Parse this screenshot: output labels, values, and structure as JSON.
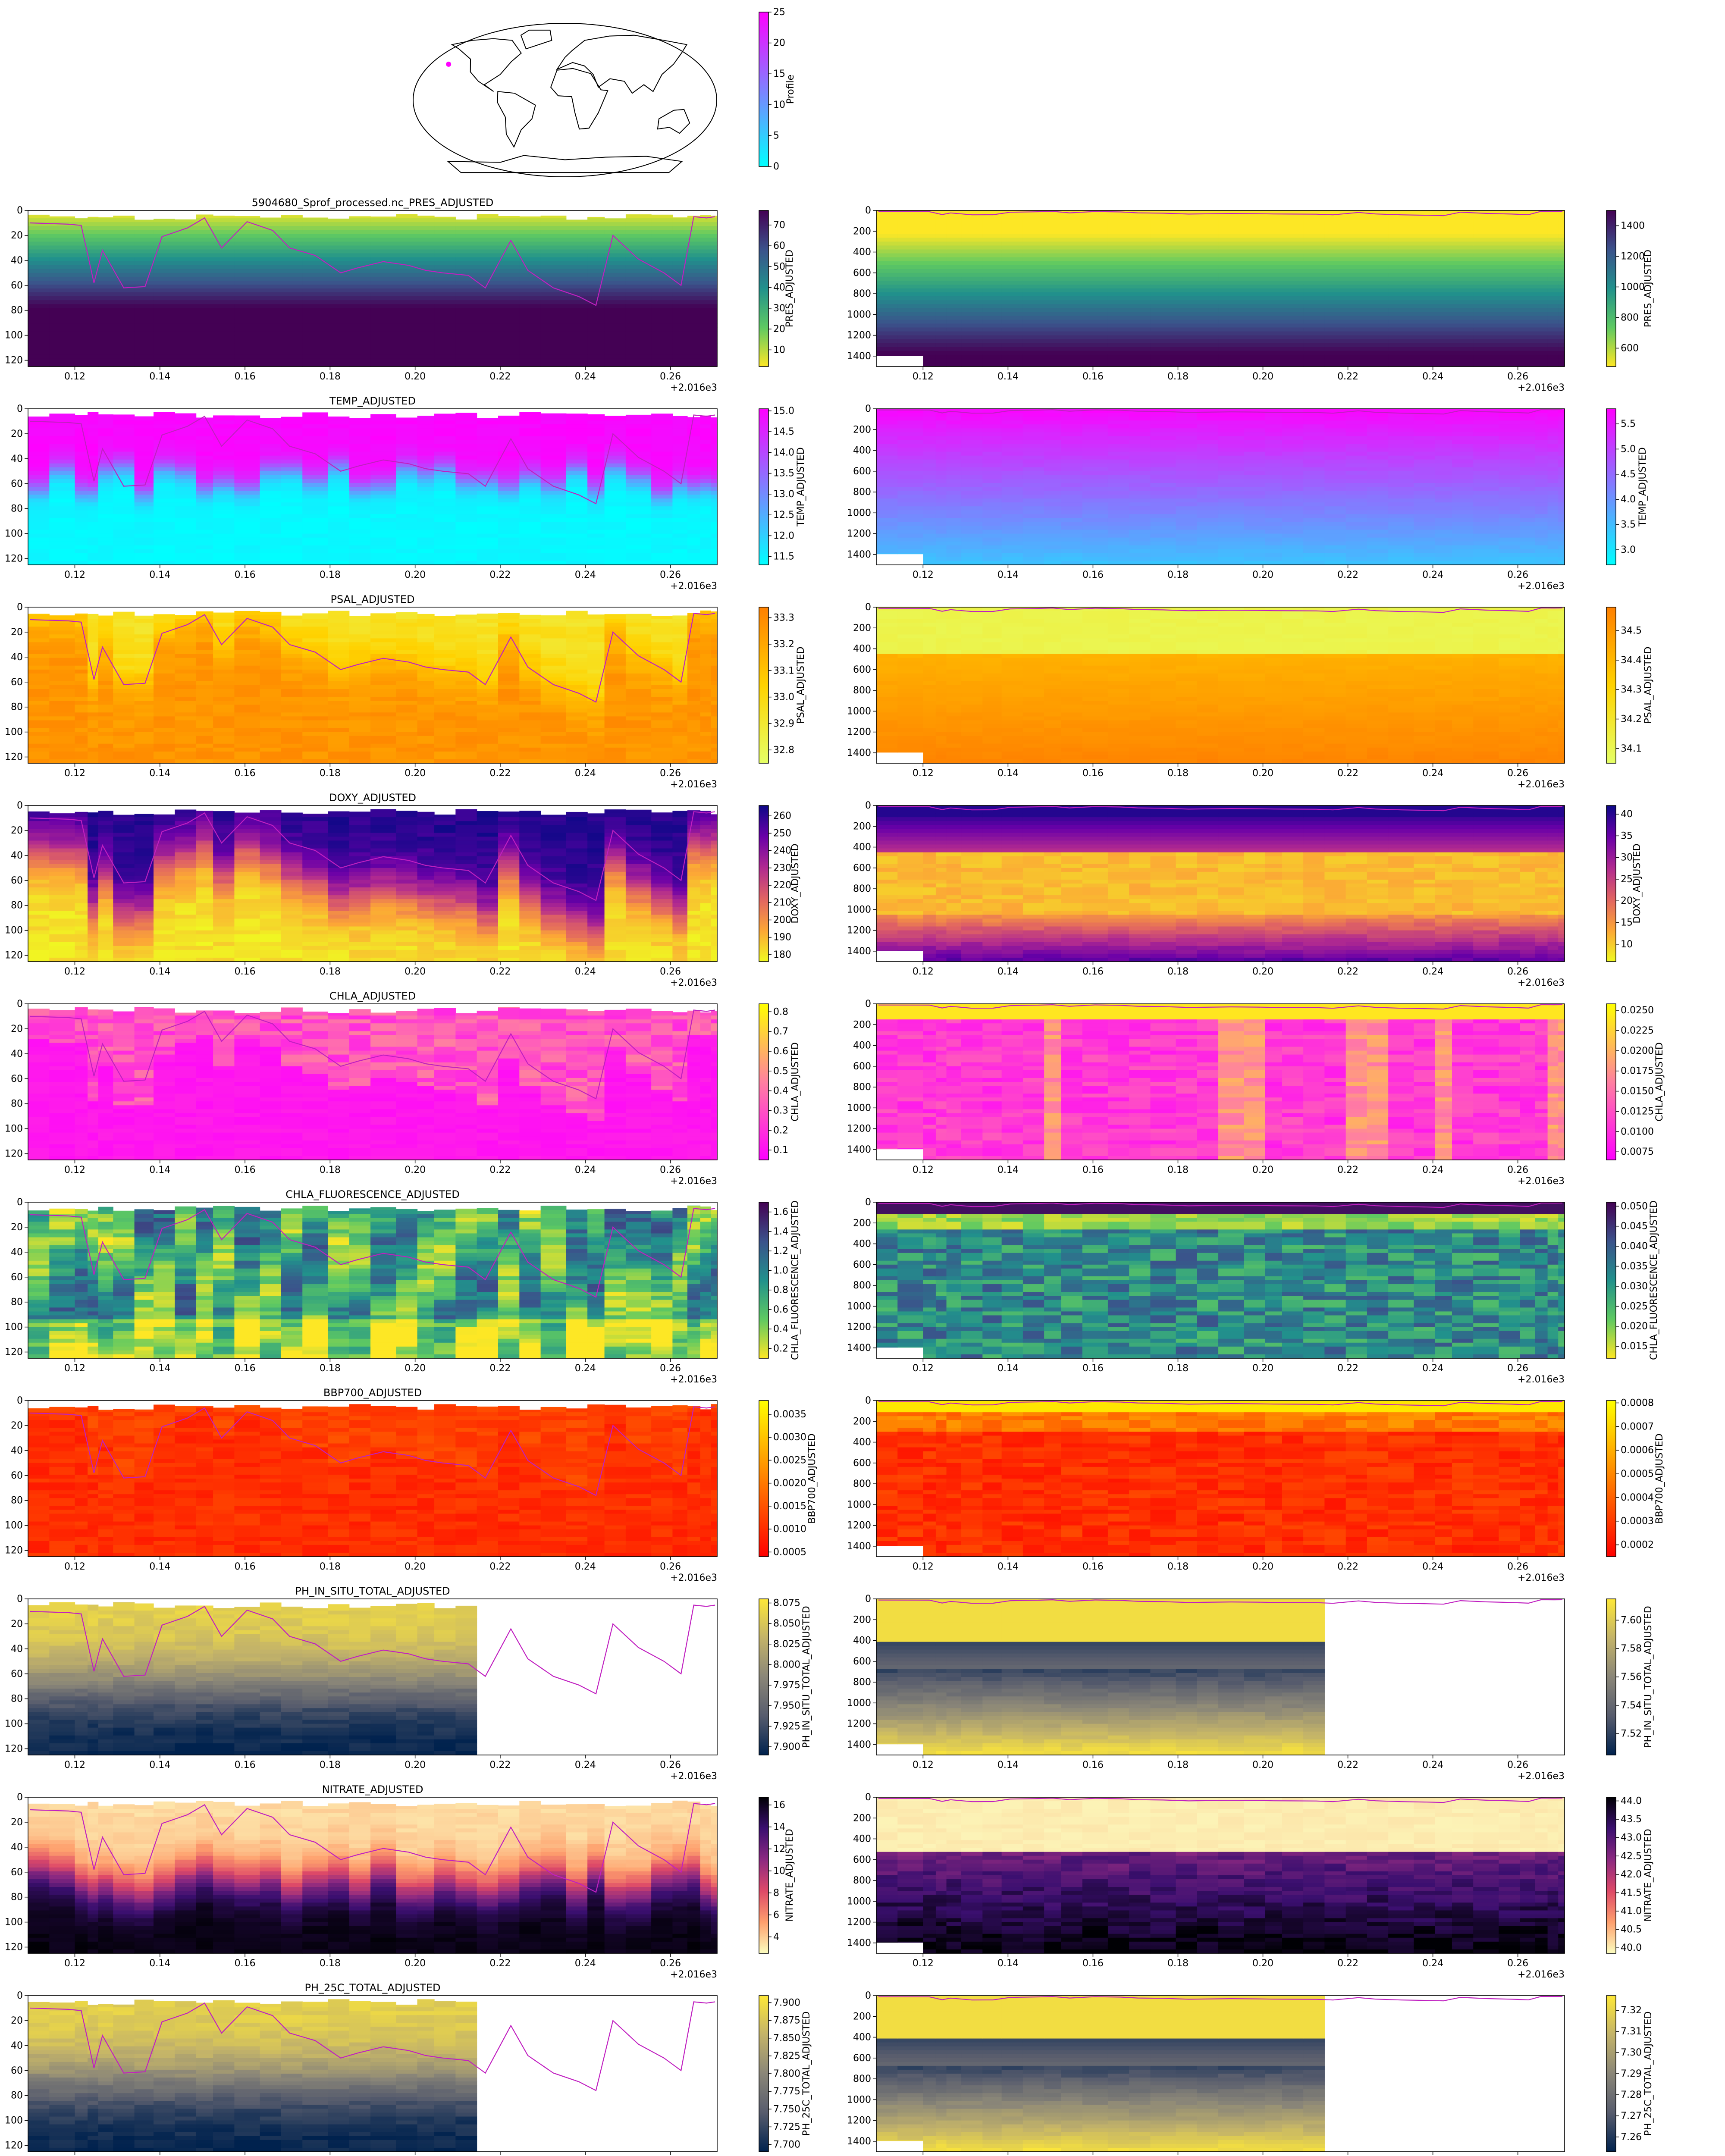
{
  "map": {
    "colorbar": {
      "label": "Profile",
      "ticks": [
        0,
        5,
        10,
        15,
        20,
        25
      ],
      "min": 0,
      "max": 25,
      "cmap": [
        "#00ffff",
        "#ff00ff"
      ]
    },
    "marker_color": "#ff00ff",
    "marker_lon": -150,
    "marker_lat": 42
  },
  "chart_data": [
    {
      "type": "heatmap",
      "title": "5904680_Sprof_processed.nc_PRES_ADJUSTED",
      "xlabel": "",
      "ylabel": "",
      "x_offset_label": "+2.016e3",
      "xticks": [
        0.12,
        0.14,
        0.16,
        0.18,
        0.2,
        0.22,
        0.24,
        0.26
      ],
      "xlim": [
        0.109,
        0.271
      ],
      "shallow": {
        "ylim": [
          125,
          0
        ],
        "yticks": [
          0,
          20,
          40,
          60,
          80,
          100,
          120
        ],
        "colorbar": {
          "label": "PRES_ADJUSTED",
          "ticks": [
            10,
            20,
            30,
            40,
            50,
            60,
            70
          ],
          "min": 2,
          "max": 77,
          "cmap": [
            "#fde725",
            "#5ec962",
            "#21918c",
            "#3b528b",
            "#440154"
          ]
        }
      },
      "deep": {
        "ylim": [
          1500,
          0
        ],
        "yticks": [
          0,
          200,
          400,
          600,
          800,
          1000,
          1200,
          1400
        ],
        "colorbar": {
          "label": "PRES_ADJUSTED",
          "ticks": [
            600,
            800,
            1000,
            1200,
            1400
          ],
          "min": 480,
          "max": 1500,
          "cmap": [
            "#fde725",
            "#5ec962",
            "#21918c",
            "#3b528b",
            "#440154"
          ]
        }
      }
    },
    {
      "type": "heatmap",
      "title": "TEMP_ADJUSTED",
      "xlabel": "",
      "ylabel": "",
      "x_offset_label": "+2.016e3",
      "xticks": [
        0.12,
        0.14,
        0.16,
        0.18,
        0.2,
        0.22,
        0.24,
        0.26
      ],
      "xlim": [
        0.109,
        0.271
      ],
      "shallow": {
        "ylim": [
          125,
          0
        ],
        "yticks": [
          0,
          20,
          40,
          60,
          80,
          100,
          120
        ],
        "colorbar": {
          "label": "TEMP_ADJUSTED",
          "ticks": [
            11.5,
            12.0,
            12.5,
            13.0,
            13.5,
            14.0,
            14.5,
            15.0
          ],
          "min": 11.3,
          "max": 15.05,
          "cmap": [
            "#00ffff",
            "#7f7fff",
            "#ff00ff"
          ]
        }
      },
      "deep": {
        "ylim": [
          1500,
          0
        ],
        "yticks": [
          0,
          200,
          400,
          600,
          800,
          1000,
          1200,
          1400
        ],
        "colorbar": {
          "label": "TEMP_ADJUSTED",
          "ticks": [
            3.0,
            3.5,
            4.0,
            4.5,
            5.0,
            5.5
          ],
          "min": 2.7,
          "max": 5.8,
          "cmap": [
            "#00ffff",
            "#7f7fff",
            "#ff00ff"
          ]
        }
      }
    },
    {
      "type": "heatmap",
      "title": "PSAL_ADJUSTED",
      "xlabel": "",
      "ylabel": "",
      "x_offset_label": "+2.016e3",
      "xticks": [
        0.12,
        0.14,
        0.16,
        0.18,
        0.2,
        0.22,
        0.24,
        0.26
      ],
      "xlim": [
        0.109,
        0.271
      ],
      "shallow": {
        "ylim": [
          125,
          0
        ],
        "yticks": [
          0,
          20,
          40,
          60,
          80,
          100,
          120
        ],
        "colorbar": {
          "label": "PSAL_ADJUSTED",
          "ticks": [
            32.8,
            32.9,
            33.0,
            33.1,
            33.2,
            33.3
          ],
          "min": 32.75,
          "max": 33.34,
          "cmap": [
            "#e5ff66",
            "#ffd200",
            "#ff8000"
          ]
        }
      },
      "deep": {
        "ylim": [
          1500,
          0
        ],
        "yticks": [
          0,
          200,
          400,
          600,
          800,
          1000,
          1200,
          1400
        ],
        "colorbar": {
          "label": "PSAL_ADJUSTED",
          "ticks": [
            34.1,
            34.2,
            34.3,
            34.4,
            34.5
          ],
          "min": 34.05,
          "max": 34.58,
          "cmap": [
            "#e5ff66",
            "#ffd200",
            "#ff8000"
          ]
        }
      }
    },
    {
      "type": "heatmap",
      "title": "DOXY_ADJUSTED",
      "xlabel": "",
      "ylabel": "",
      "x_offset_label": "+2.016e3",
      "xticks": [
        0.12,
        0.14,
        0.16,
        0.18,
        0.2,
        0.22,
        0.24,
        0.26
      ],
      "xlim": [
        0.109,
        0.271
      ],
      "shallow": {
        "ylim": [
          125,
          0
        ],
        "yticks": [
          0,
          20,
          40,
          60,
          80,
          100,
          120
        ],
        "colorbar": {
          "label": "DOXY_ADJUSTED",
          "ticks": [
            180,
            190,
            200,
            210,
            220,
            230,
            240,
            250,
            260
          ],
          "min": 176,
          "max": 266,
          "cmap": [
            "#f0f921",
            "#fca636",
            "#e16462",
            "#b12a90",
            "#6a00a8",
            "#0d0887"
          ]
        }
      },
      "deep": {
        "ylim": [
          1500,
          0
        ],
        "yticks": [
          0,
          200,
          400,
          600,
          800,
          1000,
          1200,
          1400
        ],
        "colorbar": {
          "label": "DOXY_ADJUSTED",
          "ticks": [
            10,
            15,
            20,
            25,
            30,
            35,
            40
          ],
          "min": 6,
          "max": 42,
          "cmap": [
            "#f0f921",
            "#fca636",
            "#e16462",
            "#b12a90",
            "#6a00a8",
            "#0d0887"
          ]
        }
      }
    },
    {
      "type": "heatmap",
      "title": "CHLA_ADJUSTED",
      "xlabel": "",
      "ylabel": "",
      "x_offset_label": "+2.016e3",
      "xticks": [
        0.12,
        0.14,
        0.16,
        0.18,
        0.2,
        0.22,
        0.24,
        0.26
      ],
      "xlim": [
        0.109,
        0.271
      ],
      "shallow": {
        "ylim": [
          125,
          0
        ],
        "yticks": [
          0,
          20,
          40,
          60,
          80,
          100,
          120
        ],
        "colorbar": {
          "label": "CHLA_ADJUSTED",
          "ticks": [
            0.1,
            0.2,
            0.3,
            0.4,
            0.5,
            0.6,
            0.7,
            0.8
          ],
          "min": 0.05,
          "max": 0.84,
          "cmap": [
            "#ff00ff",
            "#ff80a0",
            "#ffff00"
          ]
        }
      },
      "deep": {
        "ylim": [
          1500,
          0
        ],
        "yticks": [
          0,
          200,
          400,
          600,
          800,
          1000,
          1200,
          1400
        ],
        "colorbar": {
          "label": "CHLA_ADJUSTED",
          "ticks": [
            0.0075,
            0.01,
            0.0125,
            0.015,
            0.0175,
            0.02,
            0.0225,
            0.025
          ],
          "min": 0.0065,
          "max": 0.0258,
          "cmap": [
            "#ff00ff",
            "#ff80a0",
            "#ffff00"
          ]
        }
      }
    },
    {
      "type": "heatmap",
      "title": "CHLA_FLUORESCENCE_ADJUSTED",
      "xlabel": "",
      "ylabel": "",
      "x_offset_label": "+2.016e3",
      "xticks": [
        0.12,
        0.14,
        0.16,
        0.18,
        0.2,
        0.22,
        0.24,
        0.26
      ],
      "xlim": [
        0.109,
        0.271
      ],
      "shallow": {
        "ylim": [
          125,
          0
        ],
        "yticks": [
          0,
          20,
          40,
          60,
          80,
          100,
          120
        ],
        "colorbar": {
          "label": "CHLA_FLUORESCENCE_ADJUSTED",
          "ticks": [
            0.2,
            0.4,
            0.6,
            0.8,
            1.0,
            1.2,
            1.4,
            1.6
          ],
          "min": 0.1,
          "max": 1.7,
          "cmap": [
            "#fde725",
            "#5ec962",
            "#21918c",
            "#3b528b",
            "#440154"
          ]
        }
      },
      "deep": {
        "ylim": [
          1500,
          0
        ],
        "yticks": [
          0,
          200,
          400,
          600,
          800,
          1000,
          1200,
          1400
        ],
        "colorbar": {
          "label": "CHLA_FLUORESCENCE_ADJUSTED",
          "ticks": [
            0.015,
            0.02,
            0.025,
            0.03,
            0.035,
            0.04,
            0.045,
            0.05
          ],
          "min": 0.012,
          "max": 0.051,
          "cmap": [
            "#fde725",
            "#5ec962",
            "#21918c",
            "#3b528b",
            "#440154"
          ]
        }
      }
    },
    {
      "type": "heatmap",
      "title": "BBP700_ADJUSTED",
      "xlabel": "",
      "ylabel": "",
      "x_offset_label": "+2.016e3",
      "xticks": [
        0.12,
        0.14,
        0.16,
        0.18,
        0.2,
        0.22,
        0.24,
        0.26
      ],
      "xlim": [
        0.109,
        0.271
      ],
      "shallow": {
        "ylim": [
          125,
          0
        ],
        "yticks": [
          0,
          20,
          40,
          60,
          80,
          100,
          120
        ],
        "colorbar": {
          "label": "BBP700_ADJUSTED",
          "ticks": [
            0.0005,
            0.001,
            0.0015,
            0.002,
            0.0025,
            0.003,
            0.0035
          ],
          "min": 0.0004,
          "max": 0.0038,
          "cmap": [
            "#ff0000",
            "#ff8000",
            "#ffff00"
          ]
        }
      },
      "deep": {
        "ylim": [
          1500,
          0
        ],
        "yticks": [
          0,
          200,
          400,
          600,
          800,
          1000,
          1200,
          1400
        ],
        "colorbar": {
          "label": "BBP700_ADJUSTED",
          "ticks": [
            0.0002,
            0.0003,
            0.0004,
            0.0005,
            0.0006,
            0.0007,
            0.0008
          ],
          "min": 0.00015,
          "max": 0.00081,
          "cmap": [
            "#ff0000",
            "#ff8000",
            "#ffff00"
          ]
        }
      }
    },
    {
      "type": "heatmap",
      "title": "PH_IN_SITU_TOTAL_ADJUSTED",
      "xlabel": "",
      "ylabel": "",
      "x_offset_label": "+2.016e3",
      "xticks": [
        0.12,
        0.14,
        0.16,
        0.18,
        0.2,
        0.22,
        0.24,
        0.26
      ],
      "xlim": [
        0.109,
        0.271
      ],
      "shallow": {
        "ylim": [
          125,
          0
        ],
        "yticks": [
          0,
          20,
          40,
          60,
          80,
          100,
          120
        ],
        "colorbar": {
          "label": "PH_IN_SITU_TOTAL_ADJUSTED",
          "ticks": [
            7.9,
            7.925,
            7.95,
            7.975,
            8.0,
            8.025,
            8.05,
            8.075
          ],
          "min": 7.89,
          "max": 8.08,
          "cmap": [
            "#00224e",
            "#575c6d",
            "#8a8678",
            "#c3b369",
            "#fee838"
          ]
        }
      },
      "deep": {
        "ylim": [
          1500,
          0
        ],
        "yticks": [
          0,
          200,
          400,
          600,
          800,
          1000,
          1200,
          1400
        ],
        "colorbar": {
          "label": "PH_IN_SITU_TOTAL_ADJUSTED",
          "ticks": [
            7.52,
            7.54,
            7.56,
            7.58,
            7.6
          ],
          "min": 7.505,
          "max": 7.615,
          "cmap": [
            "#00224e",
            "#575c6d",
            "#8a8678",
            "#c3b369",
            "#fee838"
          ]
        }
      }
    },
    {
      "type": "heatmap",
      "title": "NITRATE_ADJUSTED",
      "xlabel": "",
      "ylabel": "",
      "x_offset_label": "+2.016e3",
      "xticks": [
        0.12,
        0.14,
        0.16,
        0.18,
        0.2,
        0.22,
        0.24,
        0.26
      ],
      "xlim": [
        0.109,
        0.271
      ],
      "shallow": {
        "ylim": [
          125,
          0
        ],
        "yticks": [
          0,
          20,
          40,
          60,
          80,
          100,
          120
        ],
        "colorbar": {
          "label": "NITRATE_ADJUSTED",
          "ticks": [
            4,
            6,
            8,
            10,
            12,
            14,
            16
          ],
          "min": 2.5,
          "max": 16.7,
          "cmap": [
            "#fcfdbf",
            "#fe9f6d",
            "#de4968",
            "#8c2981",
            "#3b0f70",
            "#000004"
          ]
        }
      },
      "deep": {
        "ylim": [
          1500,
          0
        ],
        "yticks": [
          0,
          200,
          400,
          600,
          800,
          1000,
          1200,
          1400
        ],
        "colorbar": {
          "label": "NITRATE_ADJUSTED",
          "ticks": [
            40.0,
            40.5,
            41.0,
            41.5,
            42.0,
            42.5,
            43.0,
            43.5,
            44.0
          ],
          "min": 39.85,
          "max": 44.1,
          "cmap": [
            "#fcfdbf",
            "#fe9f6d",
            "#de4968",
            "#8c2981",
            "#3b0f70",
            "#000004"
          ]
        }
      }
    },
    {
      "type": "heatmap",
      "title": "PH_25C_TOTAL_ADJUSTED",
      "xlabel": "",
      "ylabel": "",
      "x_offset_label": "+2.016e3",
      "xticks": [
        0.12,
        0.14,
        0.16,
        0.18,
        0.2,
        0.22,
        0.24,
        0.26
      ],
      "xlim": [
        0.109,
        0.271
      ],
      "shallow": {
        "ylim": [
          125,
          0
        ],
        "yticks": [
          0,
          20,
          40,
          60,
          80,
          100,
          120
        ],
        "colorbar": {
          "label": "PH_25C_TOTAL_ADJUSTED",
          "ticks": [
            7.7,
            7.725,
            7.75,
            7.775,
            7.8,
            7.825,
            7.85,
            7.875,
            7.9
          ],
          "min": 7.69,
          "max": 7.91,
          "cmap": [
            "#00224e",
            "#575c6d",
            "#8a8678",
            "#c3b369",
            "#fee838"
          ]
        }
      },
      "deep": {
        "ylim": [
          1500,
          0
        ],
        "yticks": [
          0,
          200,
          400,
          600,
          800,
          1000,
          1200,
          1400
        ],
        "colorbar": {
          "label": "PH_25C_TOTAL_ADJUSTED",
          "ticks": [
            7.26,
            7.27,
            7.28,
            7.29,
            7.3,
            7.31,
            7.32
          ],
          "min": 7.253,
          "max": 7.327,
          "cmap": [
            "#00224e",
            "#575c6d",
            "#8a8678",
            "#c3b369",
            "#fee838"
          ]
        }
      }
    }
  ],
  "profiles": {
    "x": [
      0.1095,
      0.1185,
      0.1215,
      0.1245,
      0.1265,
      0.1315,
      0.1365,
      0.1405,
      0.1465,
      0.1505,
      0.1545,
      0.1605,
      0.1665,
      0.1705,
      0.1765,
      0.1825,
      0.1865,
      0.1925,
      0.1985,
      0.2025,
      0.2065,
      0.2125,
      0.2165,
      0.2225,
      0.2265,
      0.2325,
      0.2385,
      0.2425,
      0.2465,
      0.2525,
      0.2585,
      0.2625,
      0.2655,
      0.2685,
      0.2705
    ],
    "mld": [
      10,
      11,
      12,
      58,
      32,
      62,
      61,
      21,
      14,
      6,
      30,
      9,
      16,
      30,
      36,
      50,
      46,
      41,
      44,
      48,
      50,
      52,
      62,
      24,
      48,
      62,
      69,
      76,
      20,
      39,
      50,
      60,
      5,
      6,
      5
    ],
    "nodata_after_x": 0.2135,
    "line_color": "#c020c0"
  }
}
